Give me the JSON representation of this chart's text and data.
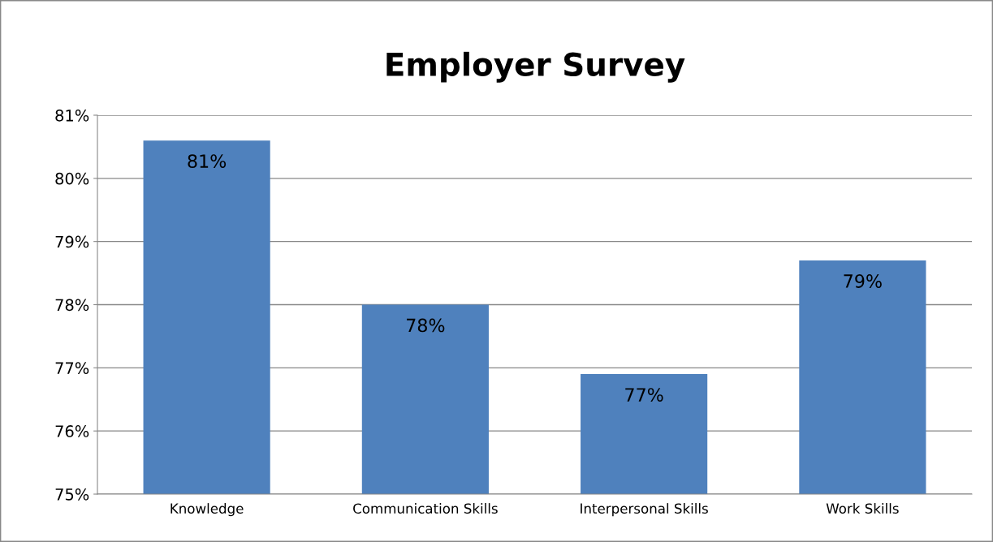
{
  "chart_data": {
    "type": "bar",
    "title": "Employer Survey",
    "categories": [
      "Knowledge",
      "Communication Skills",
      "Interpersonal Skills",
      "Work Skills"
    ],
    "values": [
      80.6,
      78.0,
      76.9,
      78.7
    ],
    "value_labels": [
      "81%",
      "78%",
      "77%",
      "79%"
    ],
    "color": "#4f81bd",
    "ylim": [
      75,
      81
    ],
    "yticks": [
      {
        "value": 75,
        "label": "75%"
      },
      {
        "value": 76,
        "label": "76%"
      },
      {
        "value": 77,
        "label": "77%"
      },
      {
        "value": 78,
        "label": "78%"
      },
      {
        "value": 79,
        "label": "79%"
      },
      {
        "value": 80,
        "label": "80%"
      },
      {
        "value": 81,
        "label": "81%"
      }
    ],
    "grid": "y",
    "legend": false
  }
}
